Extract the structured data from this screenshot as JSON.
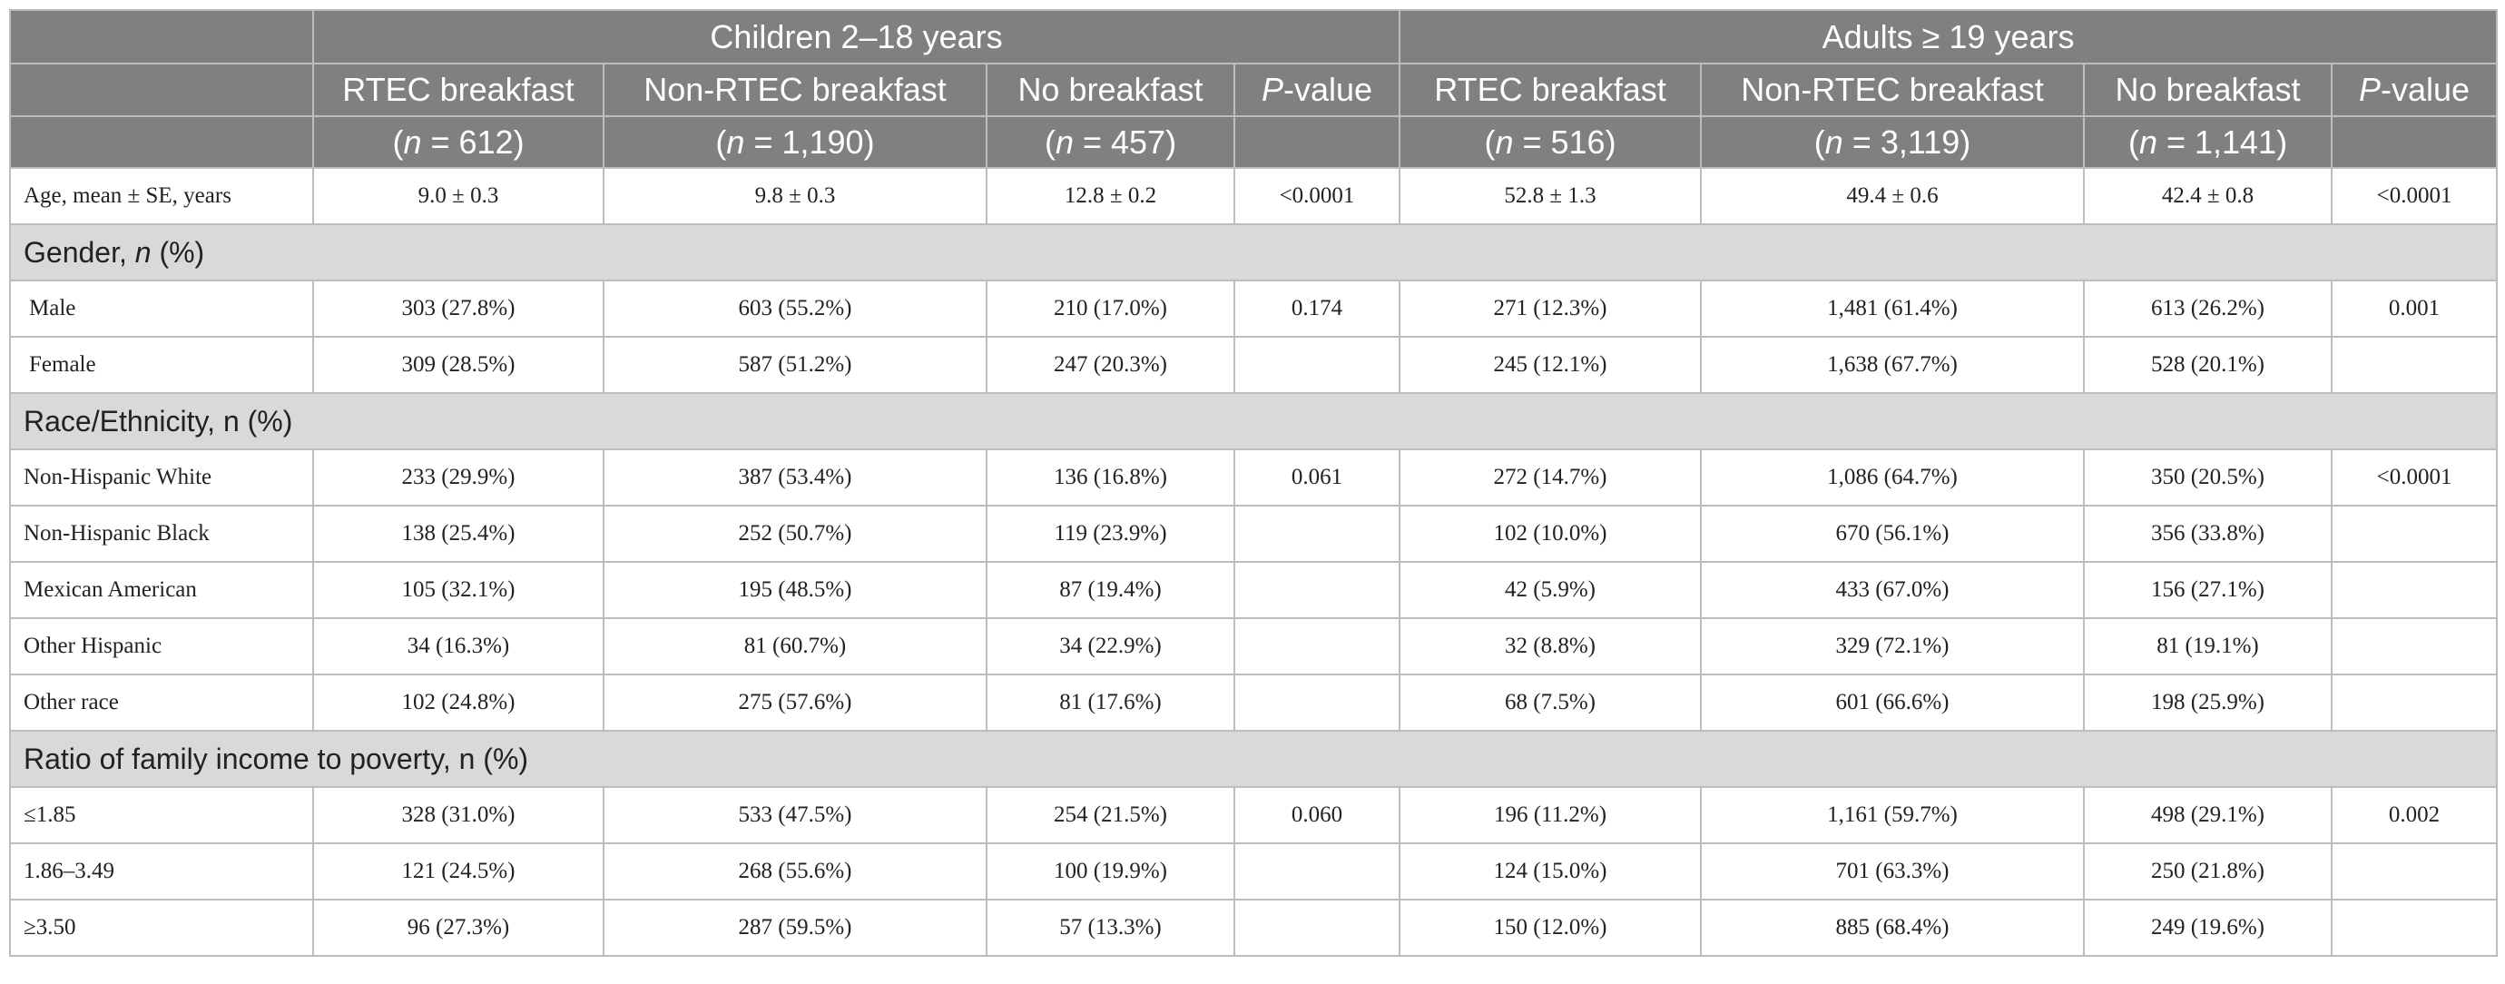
{
  "header": {
    "children_group": "Children 2–18 years",
    "adults_group": "Adults ≥ 19 years",
    "columns": [
      {
        "label": "RTEC breakfast",
        "n_prefix": "n",
        "n_value": " = 612"
      },
      {
        "label": "Non-RTEC breakfast",
        "n_prefix": "n",
        "n_value": " = 1,190"
      },
      {
        "label": "No breakfast",
        "n_prefix": "n",
        "n_value": " = 457"
      },
      {
        "label_italic": "P",
        "label_rest": "-value"
      },
      {
        "label": "RTEC breakfast",
        "n_prefix": "n",
        "n_value": " = 516"
      },
      {
        "label": "Non-RTEC breakfast",
        "n_prefix": "n",
        "n_value": " = 3,119"
      },
      {
        "label": "No breakfast",
        "n_prefix": "n",
        "n_value": " = 1,141"
      },
      {
        "label_italic": "P",
        "label_rest": "-value"
      }
    ]
  },
  "rows": {
    "age": {
      "label": "Age, mean ± SE, years",
      "cells": [
        "9.0 ± 0.3",
        "9.8 ± 0.3",
        "12.8 ± 0.2",
        "<0.0001",
        "52.8 ± 1.3",
        "49.4 ± 0.6",
        "42.4 ± 0.8",
        "<0.0001"
      ]
    },
    "gender_section": {
      "prefix": "Gender, ",
      "italic": "n",
      "suffix": " (%)"
    },
    "male": {
      "label": "Male",
      "cells": [
        "303 (27.8%)",
        "603 (55.2%)",
        "210 (17.0%)",
        "0.174",
        "271 (12.3%)",
        "1,481 (61.4%)",
        "613 (26.2%)",
        "0.001"
      ]
    },
    "female": {
      "label": "Female",
      "cells": [
        "309 (28.5%)",
        "587 (51.2%)",
        "247 (20.3%)",
        "",
        "245 (12.1%)",
        "1,638 (67.7%)",
        "528 (20.1%)",
        ""
      ]
    },
    "race_section": {
      "label": "Race/Ethnicity, n (%)"
    },
    "nh_white": {
      "label": "Non-Hispanic White",
      "cells": [
        "233 (29.9%)",
        "387 (53.4%)",
        "136 (16.8%)",
        "0.061",
        "272 (14.7%)",
        "1,086 (64.7%)",
        "350 (20.5%)",
        "<0.0001"
      ]
    },
    "nh_black": {
      "label": "Non-Hispanic Black",
      "cells": [
        "138 (25.4%)",
        "252 (50.7%)",
        "119 (23.9%)",
        "",
        "102 (10.0%)",
        "670 (56.1%)",
        "356 (33.8%)",
        ""
      ]
    },
    "mexican": {
      "label": "Mexican American",
      "cells": [
        "105 (32.1%)",
        "195 (48.5%)",
        "87 (19.4%)",
        "",
        "42 (5.9%)",
        "433 (67.0%)",
        "156 (27.1%)",
        ""
      ]
    },
    "other_hisp": {
      "label": "Other Hispanic",
      "cells": [
        "34 (16.3%)",
        "81 (60.7%)",
        "34 (22.9%)",
        "",
        "32 (8.8%)",
        "329 (72.1%)",
        "81 (19.1%)",
        ""
      ]
    },
    "other_race": {
      "label": "Other race",
      "cells": [
        "102 (24.8%)",
        "275 (57.6%)",
        "81 (17.6%)",
        "",
        "68 (7.5%)",
        "601 (66.6%)",
        "198 (25.9%)",
        ""
      ]
    },
    "income_section": {
      "label": "Ratio of family income to poverty, n (%)"
    },
    "inc_low": {
      "label": "≤1.85",
      "cells": [
        "328 (31.0%)",
        "533 (47.5%)",
        "254 (21.5%)",
        "0.060",
        "196 (11.2%)",
        "1,161 (59.7%)",
        "498 (29.1%)",
        "0.002"
      ]
    },
    "inc_mid": {
      "label": "1.86–3.49",
      "cells": [
        "121 (24.5%)",
        "268 (55.6%)",
        "100 (19.9%)",
        "",
        "124 (15.0%)",
        "701 (63.3%)",
        "250 (21.8%)",
        ""
      ]
    },
    "inc_high": {
      "label": "≥3.50",
      "cells": [
        "96 (27.3%)",
        "287 (59.5%)",
        "57 (13.3%)",
        "",
        "150 (12.0%)",
        "885 (68.4%)",
        "249 (19.6%)",
        ""
      ]
    }
  }
}
